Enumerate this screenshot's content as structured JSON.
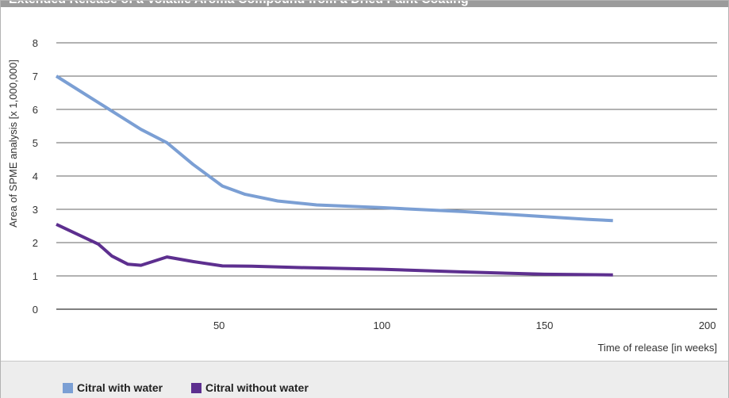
{
  "title": "Extended Release of a Volatile Aroma Compound from a Dried Paint Coating",
  "colors": {
    "series1": "#7b9fd4",
    "series2": "#5d2f8f",
    "grid": "#333333",
    "title_bg": "#9b9b9b",
    "legend_bg": "#ededed"
  },
  "chart_data": {
    "type": "line",
    "title": "Extended Release of a Volatile Aroma Compound from a Dried Paint Coating",
    "xlabel": "Time of release [in weeks]",
    "ylabel": "Area of SPME analysis [x 1,000,000]",
    "xlim": [
      0,
      200
    ],
    "ylim": [
      0,
      8
    ],
    "xticks": [
      50,
      100,
      150,
      200
    ],
    "yticks": [
      0,
      1,
      2,
      3,
      4,
      5,
      6,
      7,
      8
    ],
    "grid": "horizontal",
    "legend_position": "bottom-left",
    "series": [
      {
        "name": "Citral with water",
        "color": "#7b9fd4",
        "points": [
          [
            0,
            7.0
          ],
          [
            13,
            6.2
          ],
          [
            26,
            5.4
          ],
          [
            34,
            5.0
          ],
          [
            42,
            4.35
          ],
          [
            51,
            3.7
          ],
          [
            58,
            3.45
          ],
          [
            68,
            3.25
          ],
          [
            80,
            3.13
          ],
          [
            100,
            3.05
          ],
          [
            125,
            2.93
          ],
          [
            150,
            2.78
          ],
          [
            163,
            2.7
          ],
          [
            171,
            2.66
          ]
        ]
      },
      {
        "name": "Citral without water",
        "color": "#5d2f8f",
        "points": [
          [
            0,
            2.55
          ],
          [
            13,
            1.95
          ],
          [
            17,
            1.6
          ],
          [
            22,
            1.35
          ],
          [
            26,
            1.32
          ],
          [
            34,
            1.57
          ],
          [
            42,
            1.43
          ],
          [
            51,
            1.3
          ],
          [
            60,
            1.29
          ],
          [
            75,
            1.25
          ],
          [
            100,
            1.2
          ],
          [
            125,
            1.12
          ],
          [
            150,
            1.05
          ],
          [
            171,
            1.03
          ]
        ]
      }
    ]
  }
}
